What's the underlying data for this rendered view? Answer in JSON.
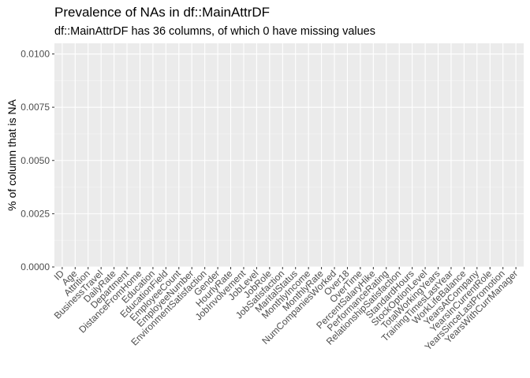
{
  "chart_data": {
    "type": "bar",
    "title": "Prevalence of NAs in df::MainAttrDF",
    "subtitle": "df::MainAttrDF has 36 columns, of which 0 have missing values",
    "xlabel": "",
    "ylabel": "% of column that is NA",
    "ylim": [
      0,
      0.0105
    ],
    "yticks": [
      0.0,
      0.0025,
      0.005,
      0.0075,
      0.01
    ],
    "ytick_labels": [
      "0.0000",
      "0.0025",
      "0.0050",
      "0.0075",
      "0.0100"
    ],
    "grid": true,
    "categories": [
      "ID",
      "Age",
      "Attrition",
      "BusinessTravel",
      "DailyRate",
      "Department",
      "DistanceFromHome",
      "Education",
      "EducationField",
      "EmployeeCount",
      "EmployeeNumber",
      "EnvironmentSatisfaction",
      "Gender",
      "HourlyRate",
      "JobInvolvement",
      "JobLevel",
      "JobRole",
      "JobSatisfaction",
      "MaritalStatus",
      "MonthlyIncome",
      "MonthlyRate",
      "NumCompaniesWorked",
      "Over18",
      "OverTime",
      "PercentSalaryHike",
      "PerformanceRating",
      "RelationshipSatisfaction",
      "StandardHours",
      "StockOptionLevel",
      "TotalWorkingYears",
      "TrainingTimesLastYear",
      "WorkLifeBalance",
      "YearsAtCompany",
      "YearsInCurrentRole",
      "YearsSinceLastPromotion",
      "YearsWithCurrManager"
    ],
    "values": [
      0,
      0,
      0,
      0,
      0,
      0,
      0,
      0,
      0,
      0,
      0,
      0,
      0,
      0,
      0,
      0,
      0,
      0,
      0,
      0,
      0,
      0,
      0,
      0,
      0,
      0,
      0,
      0,
      0,
      0,
      0,
      0,
      0,
      0,
      0,
      0
    ],
    "colors": {
      "panel": "#ebebeb",
      "grid_major": "#ffffff",
      "grid_minor": "#f5f5f5",
      "tick_text": "#4d4d4d",
      "tick_mark": "#333333",
      "bar_fill": "#595959"
    }
  }
}
